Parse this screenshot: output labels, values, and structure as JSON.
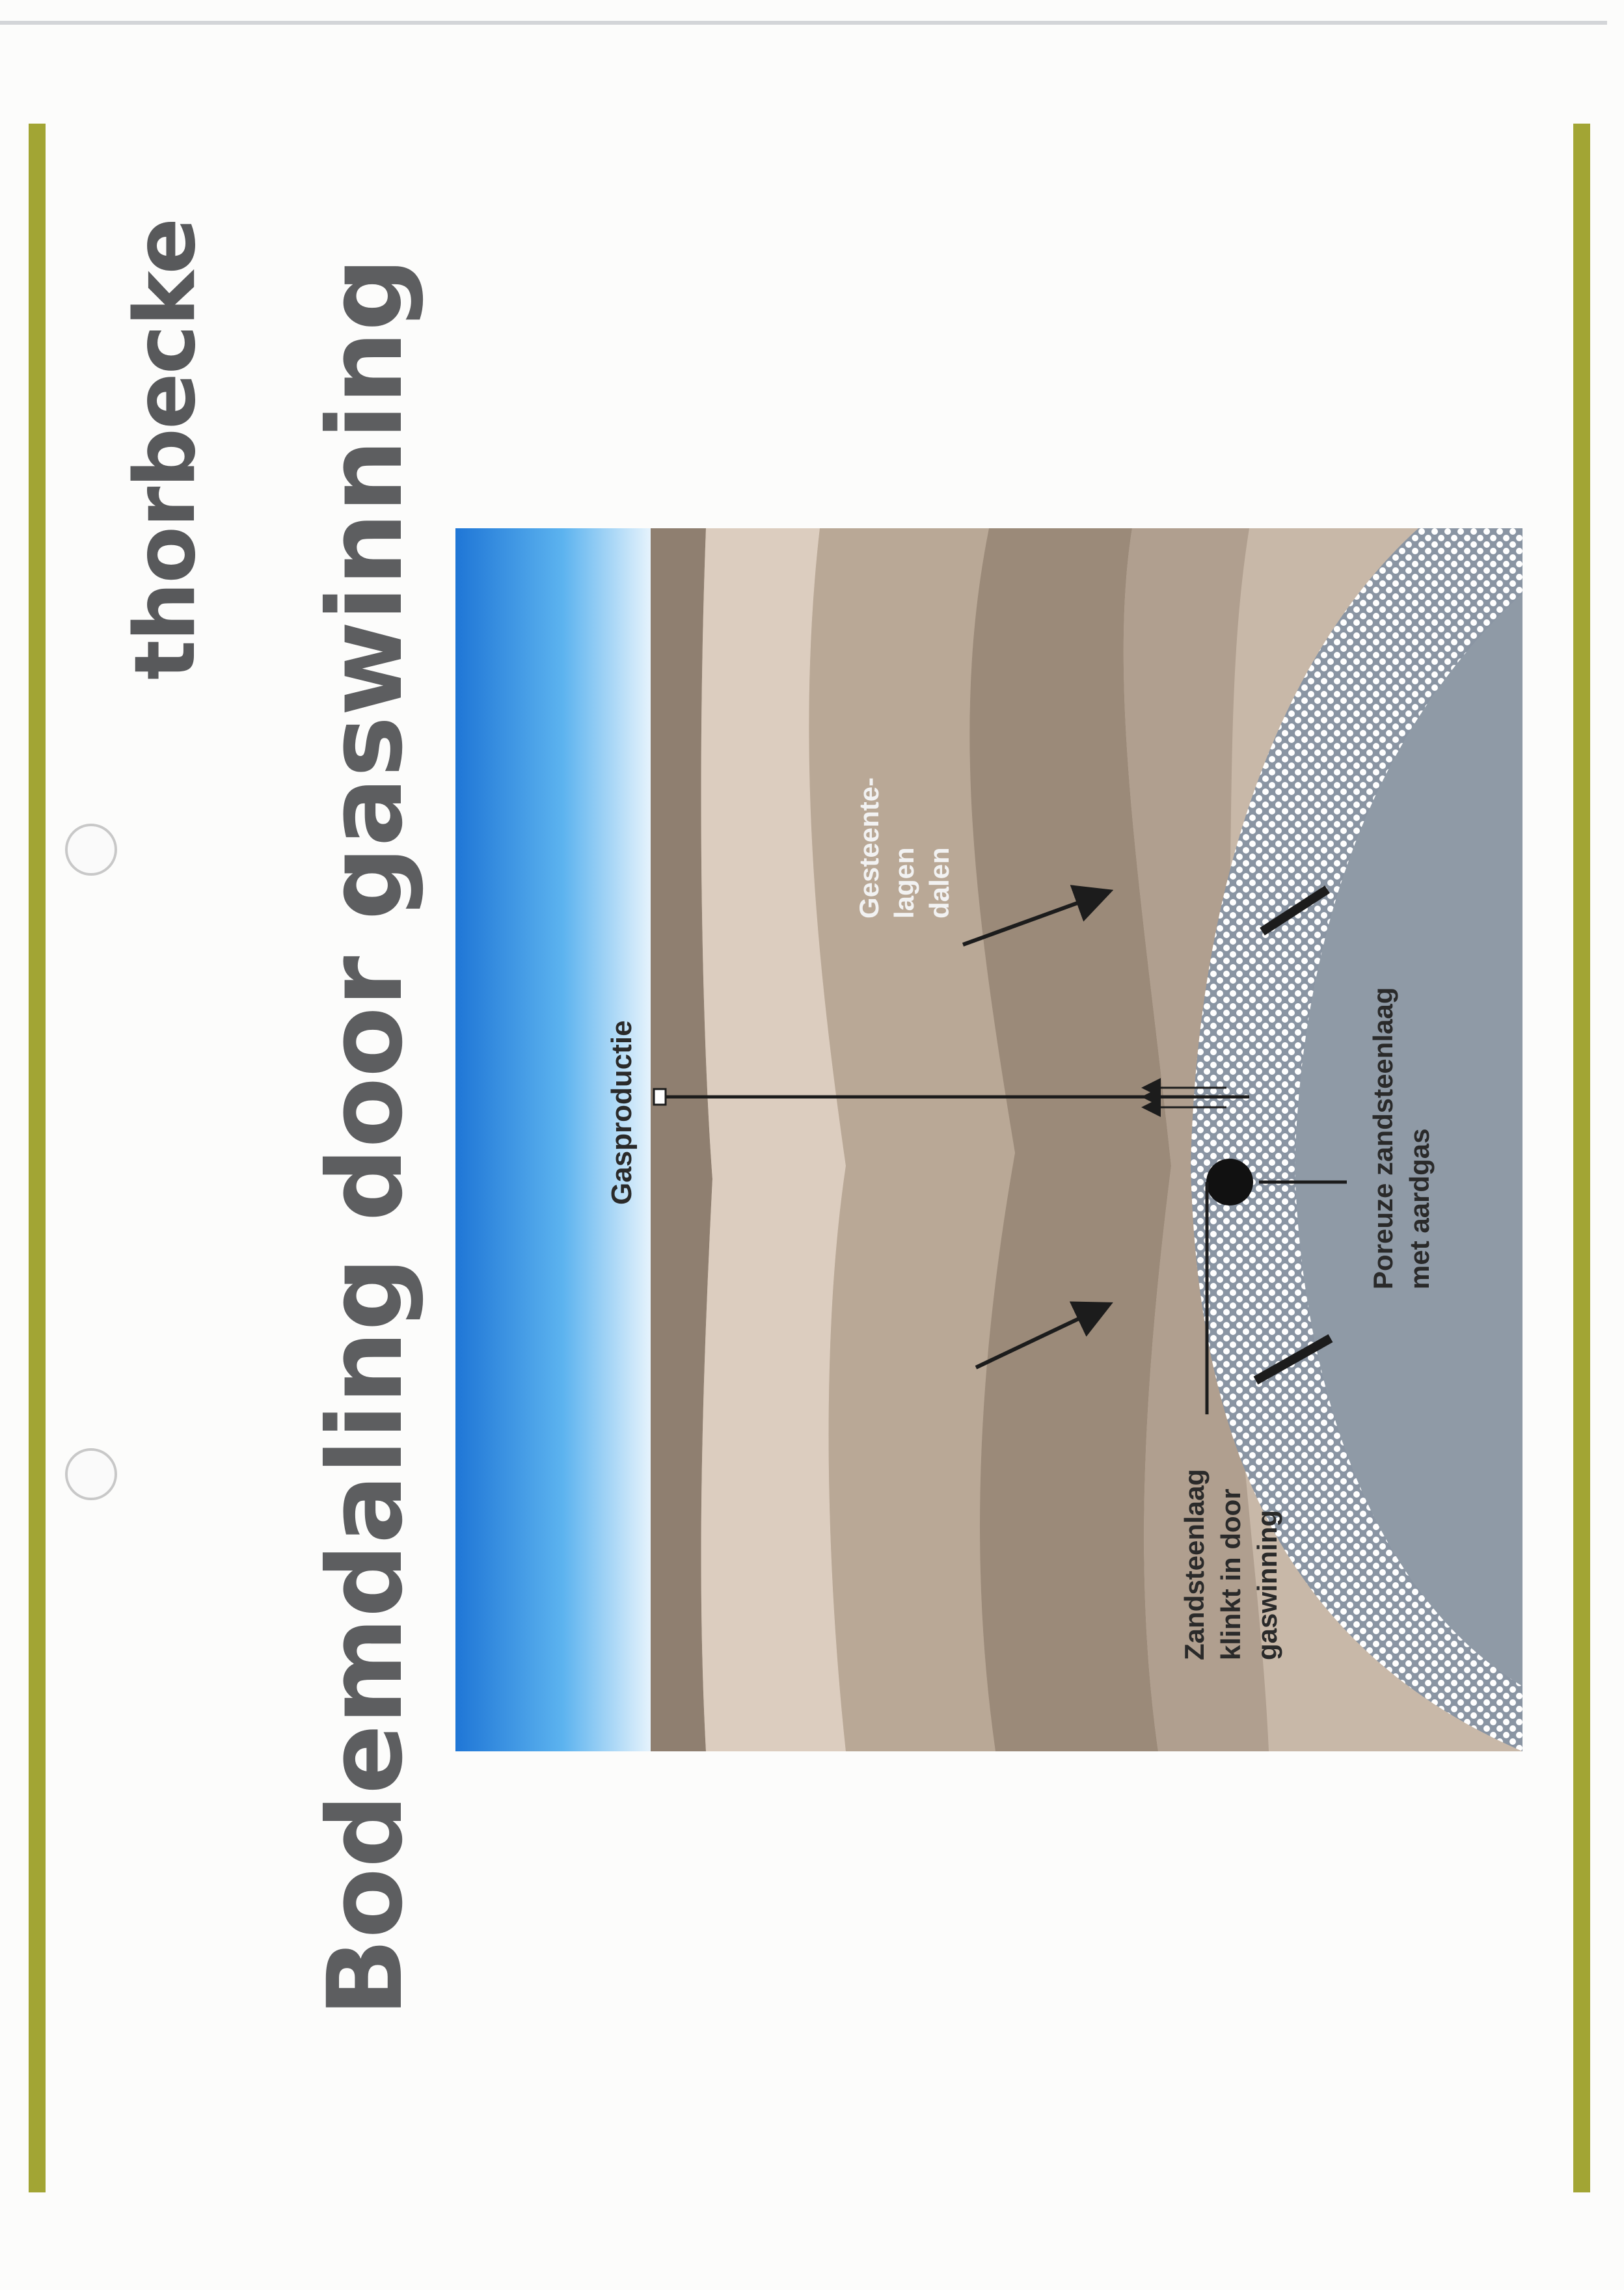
{
  "brand": "thorbecke",
  "title": "Bodemdaling door gaswinning",
  "diagram": {
    "label_production": "Gasproductie",
    "label_layers": [
      "Gesteente-",
      "lagen",
      "dalen"
    ],
    "label_compaction": [
      "Zandsteenlaag",
      "klinkt in door",
      "gaswinning"
    ],
    "label_reservoir": [
      "Poreuze zandsteenlaag",
      "met aardgas"
    ]
  },
  "colors": {
    "accent_bar": "#a2a534",
    "text": "#58595b",
    "sea": "#2f8fe0",
    "gas": "#8f9aa6"
  }
}
